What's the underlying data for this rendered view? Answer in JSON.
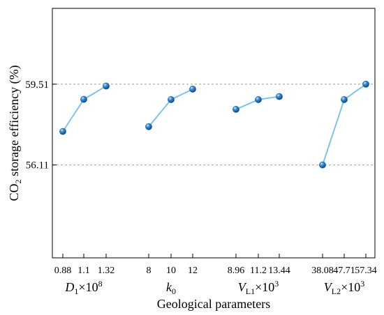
{
  "chart_data": {
    "type": "line",
    "title": "",
    "xlabel": "Geological parameters",
    "ylabel": {
      "prefix": "CO",
      "sub": "2",
      "suffix": " storage efficiency (%)"
    },
    "ylim": [
      52.2,
      62.7
    ],
    "yticks": [
      "59.51",
      "56.11"
    ],
    "reference_lines": [
      59.51,
      56.11
    ],
    "grid": "dashed reference lines at 59.51 and 56.11",
    "legend": "none",
    "colors": {
      "line": "#7ec4e6",
      "marker": "#1560a8",
      "reference": "#a0a0a0"
    },
    "groups": [
      {
        "label": {
          "base": "D",
          "sub": "1",
          "tail": "×10",
          "sup": "8"
        },
        "categories": [
          "0.88",
          "1.1",
          "1.32"
        ],
        "values": [
          57.52,
          58.87,
          59.43
        ]
      },
      {
        "label": {
          "base": "k",
          "sub": "0",
          "tail": "",
          "sup": ""
        },
        "categories": [
          "8",
          "10",
          "12"
        ],
        "values": [
          57.72,
          58.86,
          59.3
        ]
      },
      {
        "label": {
          "base": "V",
          "sub": "L1",
          "tail": "×10",
          "sup": "3"
        },
        "categories": [
          "8.96",
          "11.2",
          "13.44"
        ],
        "values": [
          58.45,
          58.86,
          58.99
        ]
      },
      {
        "label": {
          "base": "V",
          "sub": "L2",
          "tail": "×10",
          "sup": "3"
        },
        "categories": [
          "38.08",
          "47.71",
          "57.34"
        ],
        "values": [
          56.11,
          58.86,
          59.51
        ]
      }
    ]
  }
}
